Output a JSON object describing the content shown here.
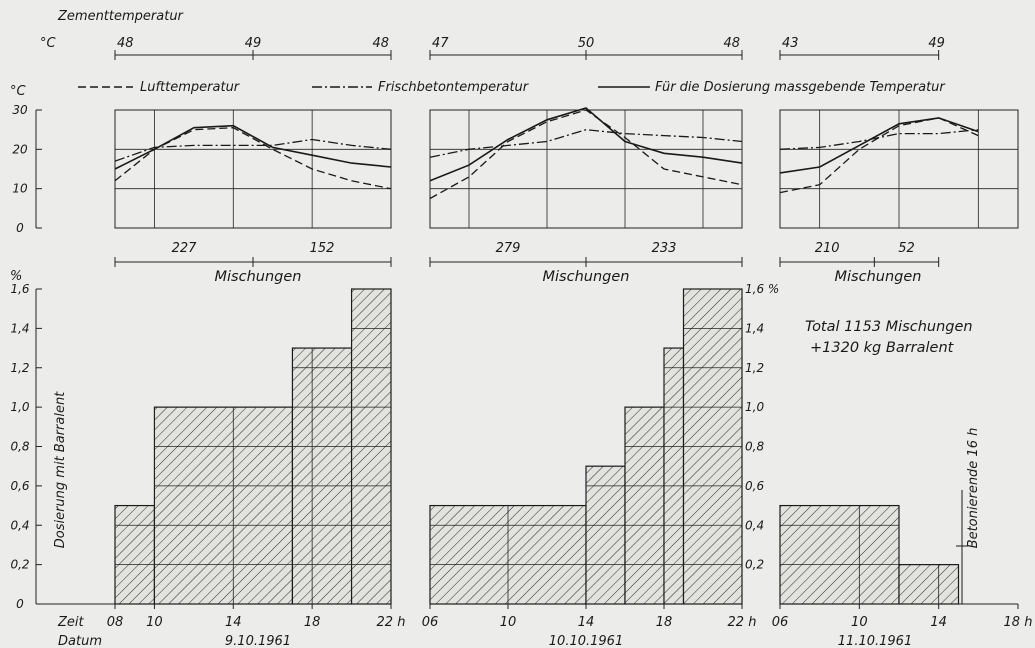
{
  "labels": {
    "cement_temp": "Zementtemperatur",
    "unit_c": "°C",
    "air": "Lufttemperatur",
    "fresh": "Frischbetontemperatur",
    "dosing_temp": "Für die Dosierung massgebende Temperatur",
    "mixes": "Mischungen",
    "y_dosing": "Dosierung mit Barralent",
    "pct": "%",
    "time": "Zeit",
    "date": "Datum",
    "total1": "Total 1153 Mischungen",
    "total2": "+1320 kg Barralent",
    "end": "Betonierende 16 h"
  },
  "chart_data": [
    {
      "type": "line",
      "date": "9.10.1961",
      "ylabel": "°C",
      "ylim": [
        0,
        30
      ],
      "yticks": [
        "30",
        "20",
        "10",
        "0"
      ],
      "cement_temperature": [
        "48",
        "49",
        "48"
      ],
      "mixes": [
        "227",
        "152"
      ],
      "x": [
        8,
        10,
        12,
        14,
        16,
        18,
        20,
        22
      ],
      "series": [
        {
          "name": "Lufttemperatur",
          "values": [
            12,
            20,
            25,
            25.5,
            20,
            15,
            12,
            10
          ]
        },
        {
          "name": "Frischbetontemperatur",
          "values": [
            17,
            20.5,
            21,
            21,
            21,
            22.5,
            21,
            20
          ]
        },
        {
          "name": "Für die Dosierung massgebende Temperatur",
          "values": [
            15,
            20,
            25.5,
            26,
            20.5,
            18.5,
            16.5,
            15.5
          ]
        }
      ]
    },
    {
      "type": "line",
      "date": "10.10.1961",
      "ylabel": "°C",
      "ylim": [
        0,
        30
      ],
      "cement_temperature": [
        "47",
        "50",
        "48"
      ],
      "mixes": [
        "279",
        "233"
      ],
      "x": [
        6,
        8,
        10,
        12,
        14,
        16,
        18,
        20,
        22
      ],
      "series": [
        {
          "name": "Lufttemperatur",
          "values": [
            7.5,
            13,
            22,
            27,
            30,
            23,
            15,
            13,
            11
          ]
        },
        {
          "name": "Frischbetontemperatur",
          "values": [
            18,
            20,
            21,
            22,
            25,
            24,
            23.5,
            23,
            22
          ]
        },
        {
          "name": "Für die Dosierung massgebende Temperatur",
          "values": [
            12,
            16,
            22.5,
            27.5,
            30.5,
            22,
            19,
            18,
            16.5
          ]
        }
      ]
    },
    {
      "type": "line",
      "date": "11.10.1961",
      "ylabel": "°C",
      "ylim": [
        0,
        30
      ],
      "cement_temperature": [
        "43",
        "49"
      ],
      "mixes": [
        "210",
        "52"
      ],
      "x": [
        6,
        8,
        10,
        12,
        14,
        16
      ],
      "series": [
        {
          "name": "Lufttemperatur",
          "values": [
            9,
            11,
            20,
            26,
            28,
            23.5
          ]
        },
        {
          "name": "Frischbetontemperatur",
          "values": [
            20,
            20.5,
            22,
            24,
            24,
            25
          ]
        },
        {
          "name": "Für die Dosierung massgebende Temperatur",
          "values": [
            14,
            15.5,
            21,
            26.5,
            28,
            24.5
          ]
        }
      ]
    },
    {
      "type": "bar",
      "title": "Dosierung mit Barralent",
      "ylabel": "%",
      "ylim": [
        0,
        1.6
      ],
      "yticks": [
        "0",
        "0,2",
        "0,4",
        "0,6",
        "0,8",
        "1,0",
        "1,2",
        "1,4",
        "1,6"
      ],
      "right_yticks": [
        "0,2",
        "0,4",
        "0,6",
        "0,8",
        "1,0",
        "1,2",
        "1,4",
        "1,6 %"
      ],
      "days": [
        {
          "date": "9.10.1961",
          "xticks": [
            "08",
            "10",
            "14",
            "18",
            "22 h"
          ],
          "steps": [
            {
              "from": 8,
              "to": 10,
              "value": 0.5
            },
            {
              "from": 10,
              "to": 17,
              "value": 1.0
            },
            {
              "from": 17,
              "to": 20,
              "value": 1.3
            },
            {
              "from": 20,
              "to": 22,
              "value": 1.6
            }
          ]
        },
        {
          "date": "10.10.1961",
          "xticks": [
            "06",
            "10",
            "14",
            "18",
            "22 h"
          ],
          "steps": [
            {
              "from": 6,
              "to": 14,
              "value": 0.5
            },
            {
              "from": 14,
              "to": 16,
              "value": 0.7
            },
            {
              "from": 16,
              "to": 18,
              "value": 1.0
            },
            {
              "from": 18,
              "to": 19,
              "value": 1.3
            },
            {
              "from": 19,
              "to": 22,
              "value": 1.6
            }
          ]
        },
        {
          "date": "11.10.1961",
          "xticks": [
            "06",
            "10",
            "14",
            "18 h"
          ],
          "steps": [
            {
              "from": 6,
              "to": 12,
              "value": 0.5
            },
            {
              "from": 12,
              "to": 15,
              "value": 0.2
            }
          ]
        }
      ]
    }
  ]
}
